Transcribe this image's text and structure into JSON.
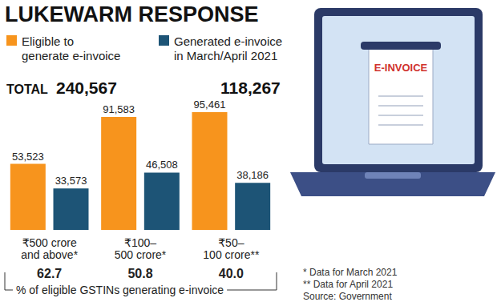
{
  "chart_data": {
    "type": "bar",
    "title": "LUKEWARM RESPONSE",
    "categories": [
      "₹500 crore\nand above*",
      "₹100–\n500 crore*",
      "₹50–\n100 crore**"
    ],
    "series": [
      {
        "name": "Eligible to\ngenerate e-invoice",
        "color": "#f7941d",
        "values": [
          53523,
          91583,
          95461
        ],
        "value_labels": [
          "53,523",
          "91,583",
          "95,461"
        ]
      },
      {
        "name": "Generated e-invoice\nin March/April 2021",
        "color": "#1d5476",
        "values": [
          33573,
          46508,
          38186
        ],
        "value_labels": [
          "33,573",
          "46,508",
          "38,186"
        ]
      }
    ],
    "totals": {
      "label": "TOTAL",
      "values": [
        {
          "value": 240567,
          "label": "240,567"
        },
        {
          "value": 118267,
          "label": "118,267"
        }
      ]
    },
    "shares": {
      "label": "% of eligible GSTINs generating e-invoice",
      "values": [
        {
          "value": 62.7,
          "label": "62.7"
        },
        {
          "value": 50.8,
          "label": "50.8"
        },
        {
          "value": 40,
          "label": "40.0"
        }
      ]
    },
    "notes": [
      "* Data for March 2021",
      "** Data for April 2021",
      "Source: Government"
    ],
    "illustration_text": "E-INVOICE",
    "ylim": [
      0,
      100000
    ],
    "grid": false,
    "legend": "top-left",
    "data_labels": true,
    "tick_labels": "x"
  }
}
